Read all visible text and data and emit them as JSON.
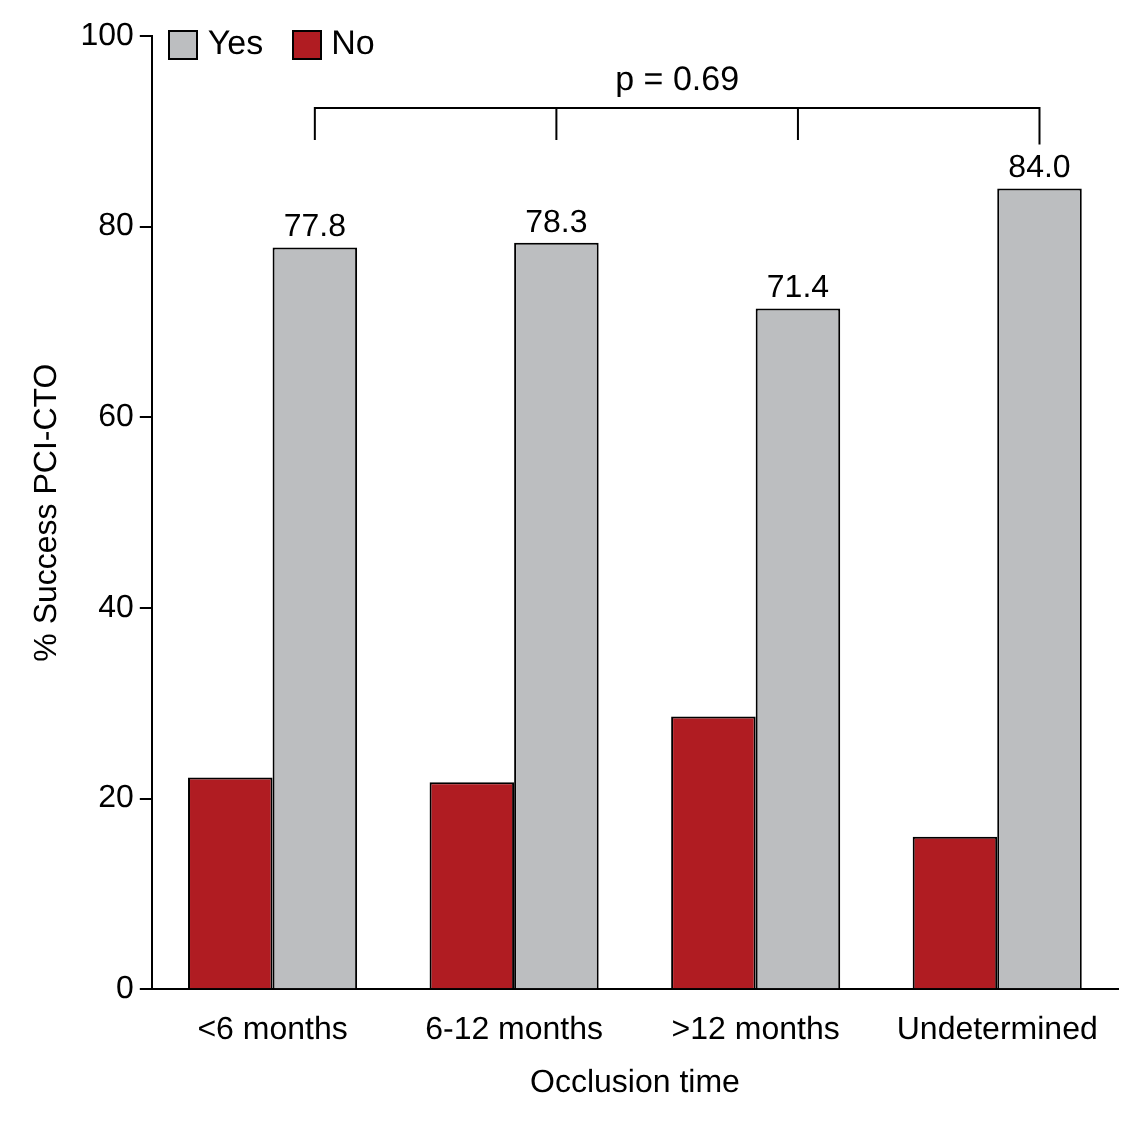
{
  "chart_data": {
    "type": "bar",
    "xlabel": "Occlusion time",
    "ylabel": "% Success PCI-CTO",
    "categories": [
      "<6 months",
      "6-12 months",
      ">12 months",
      "Undetermined"
    ],
    "series": [
      {
        "name": "No",
        "color": "#b01c22",
        "values": [
          22.2,
          21.7,
          28.6,
          16.0
        ]
      },
      {
        "name": "Yes",
        "color": "#bcbec0",
        "values": [
          77.8,
          78.3,
          71.4,
          84.0
        ],
        "value_labels": [
          "77.8",
          "78.3",
          "71.4",
          "84.0"
        ]
      }
    ],
    "ylim": [
      0,
      100
    ],
    "yticks": [
      0,
      20,
      40,
      60,
      80,
      100
    ],
    "grid": false,
    "legend": "top left",
    "annotations": [
      "p = 0.69"
    ]
  }
}
